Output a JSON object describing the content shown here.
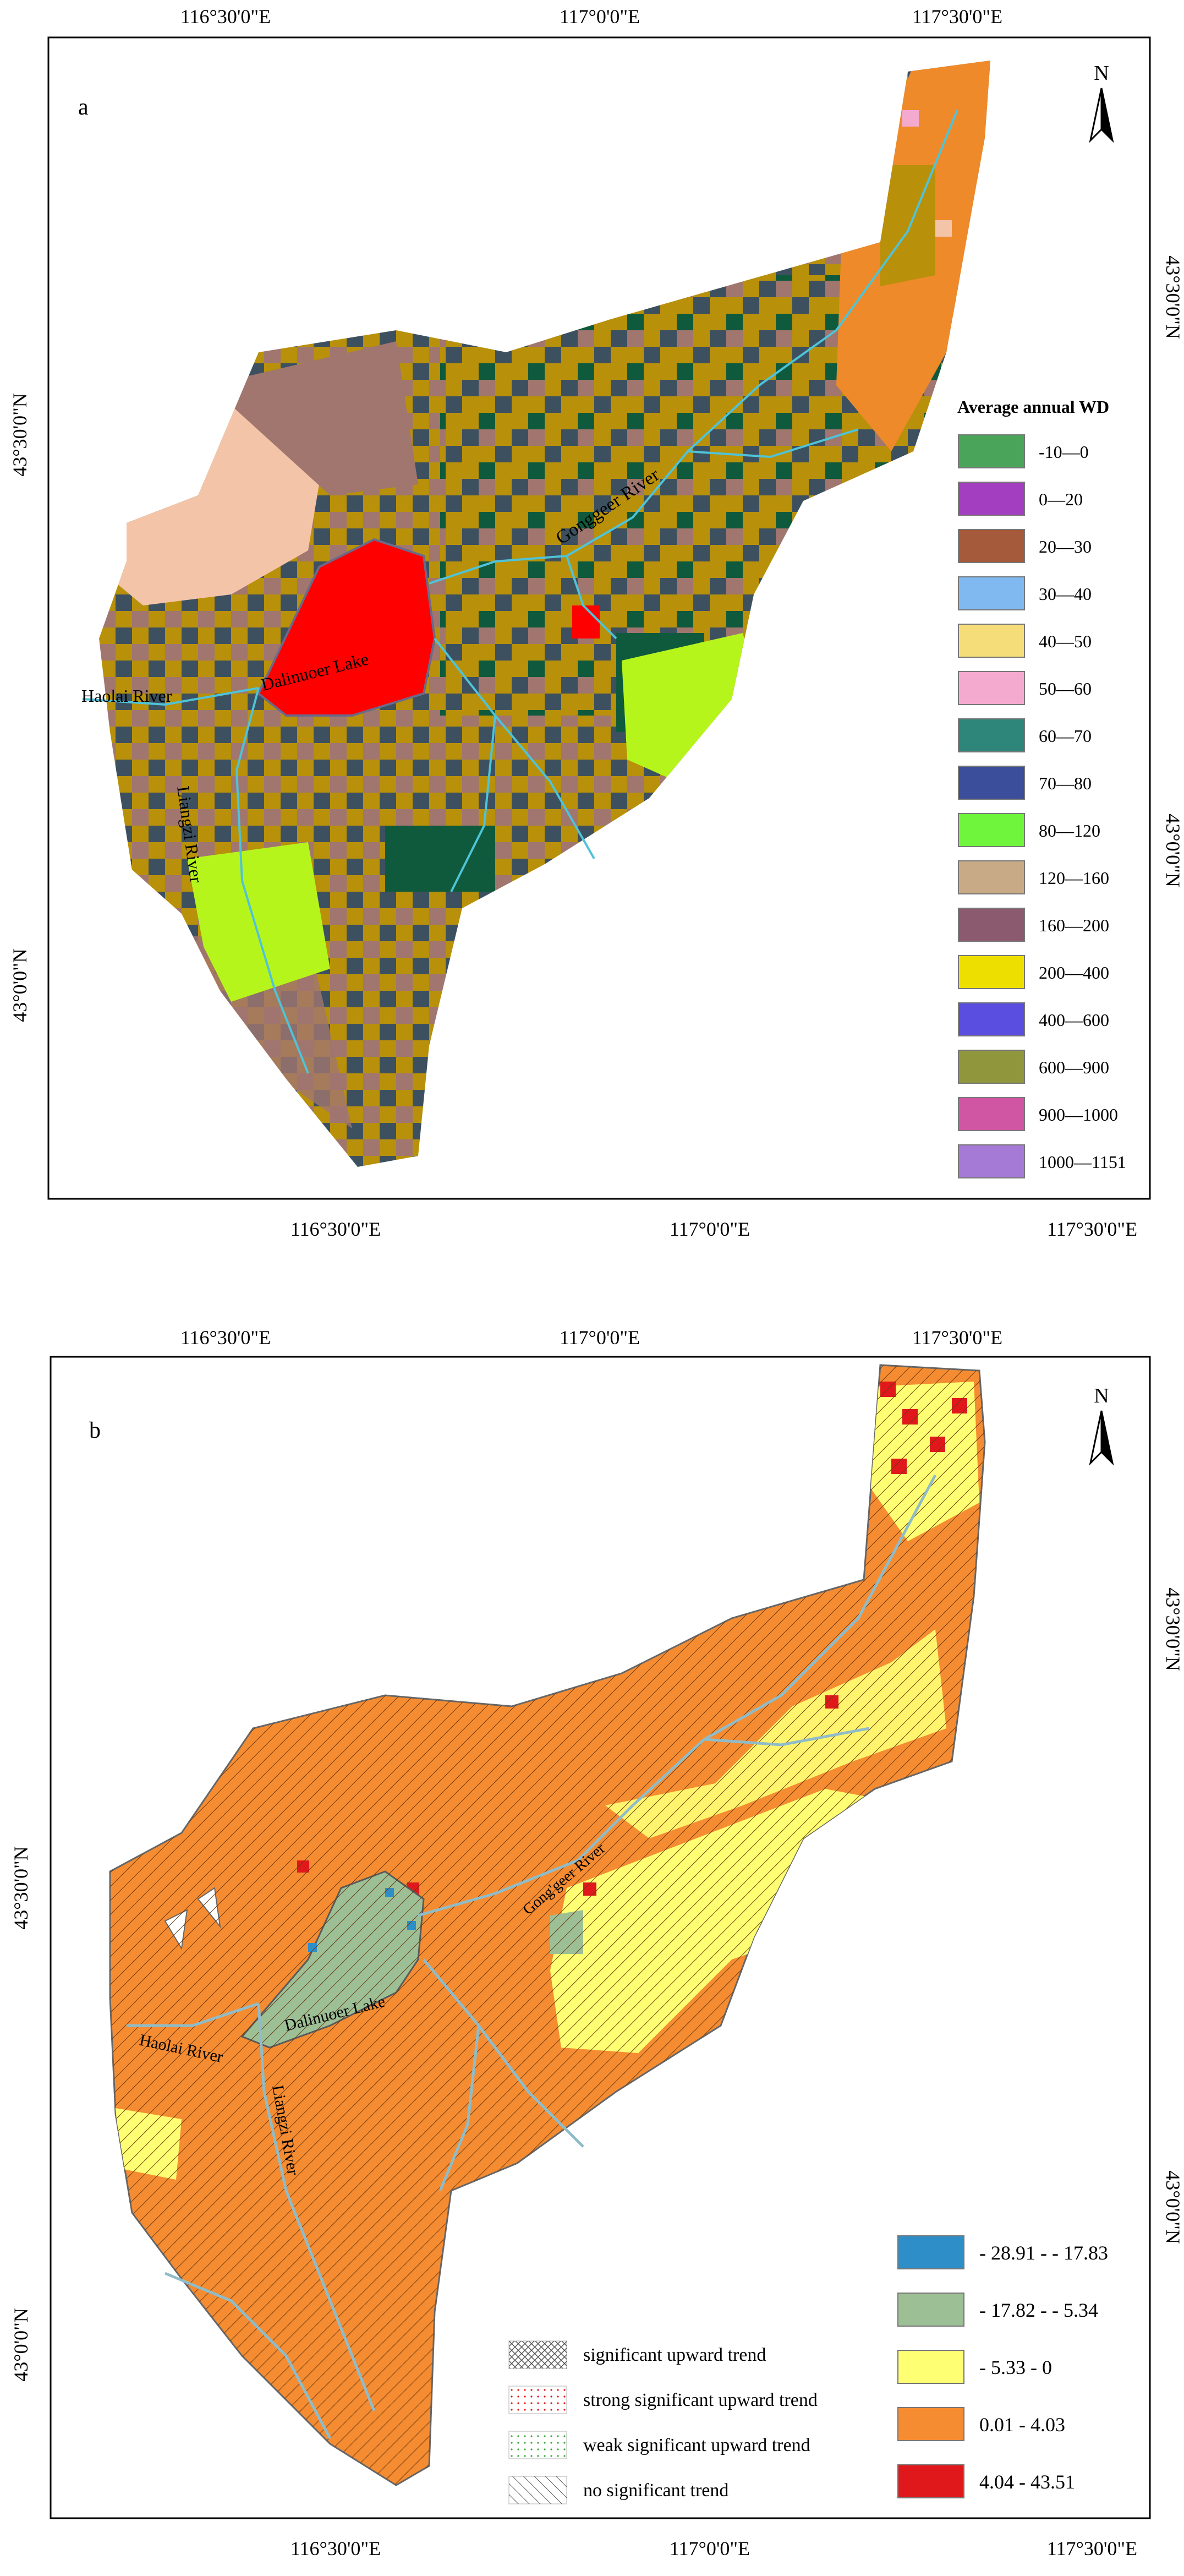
{
  "panel_a": {
    "label": "a",
    "north_label": "N",
    "top_ticks": [
      "116°30'0\"E",
      "117°0'0\"E",
      "117°30'0\"E"
    ],
    "bottom_ticks": [
      "116°30'0\"E",
      "117°0'0\"E",
      "117°30'0\"E"
    ],
    "left_ticks": [
      "43°30'0\"N",
      "43°0'0\"N"
    ],
    "right_ticks": [
      "43°30'0\"N",
      "43°0'0\"N"
    ],
    "features": {
      "lake": "Dalinuoer Lake",
      "river_haolai": "Haolai River",
      "river_lianggi": "Liangzi River",
      "river_gonggeer": "Gonggeer River"
    },
    "legend_title": "Average annual WD",
    "legend": [
      {
        "label": "-10—0",
        "color": "#4aa55a"
      },
      {
        "label": "0—20",
        "color": "#a43ec0"
      },
      {
        "label": "20—30",
        "color": "#a55a3c"
      },
      {
        "label": "30—40",
        "color": "#7fb9ef"
      },
      {
        "label": "40—50",
        "color": "#f5dd7a"
      },
      {
        "label": "50—60",
        "color": "#f4a9cf"
      },
      {
        "label": "60—70",
        "color": "#2e857a"
      },
      {
        "label": "70—80",
        "color": "#3a4e9c"
      },
      {
        "label": "80—120",
        "color": "#6ef53c"
      },
      {
        "label": "120—160",
        "color": "#c8ab86"
      },
      {
        "label": "160—200",
        "color": "#8c5a6e"
      },
      {
        "label": "200—400",
        "color": "#ede000"
      },
      {
        "label": "400—600",
        "color": "#5a4ee0"
      },
      {
        "label": "600—900",
        "color": "#8f963c"
      },
      {
        "label": "900—1000",
        "color": "#d055a2"
      },
      {
        "label": "1000—1151",
        "color": "#a57ad6"
      }
    ]
  },
  "panel_b": {
    "label": "b",
    "north_label": "N",
    "top_ticks": [
      "116°30'0\"E",
      "117°0'0\"E",
      "117°30'0\"E"
    ],
    "bottom_ticks": [
      "116°30'0\"E",
      "117°0'0\"E",
      "117°30'0\"E"
    ],
    "left_ticks": [
      "43°30'0\"N",
      "43°0'0\"N"
    ],
    "right_ticks": [
      "43°30'0\"N",
      "43°0'0\"N"
    ],
    "features": {
      "lake": "Dalinuoer Lake",
      "river_haolai": "Haolai River",
      "river_lianggi": "Liangzi River",
      "river_gonggeer": "Gong'geer River"
    },
    "trend_legend": [
      {
        "label": "significant upward trend",
        "pattern": "crosshatch"
      },
      {
        "label": "strong significant upward trend",
        "pattern": "red-dots"
      },
      {
        "label": "weak significant upward trend",
        "pattern": "green-dots"
      },
      {
        "label": "no significant  trend",
        "pattern": "diagonal"
      }
    ],
    "value_legend": [
      {
        "label": "- 28.91 - - 17.83",
        "color": "#2e8fc8"
      },
      {
        "label": "- 17.82 - - 5.34",
        "color": "#9dbf96"
      },
      {
        "label": "- 5.33 - 0",
        "color": "#ffff73"
      },
      {
        "label": "0.01 - 4.03",
        "color": "#f58c32"
      },
      {
        "label": "4.04 - 43.51",
        "color": "#e0181c"
      }
    ]
  }
}
